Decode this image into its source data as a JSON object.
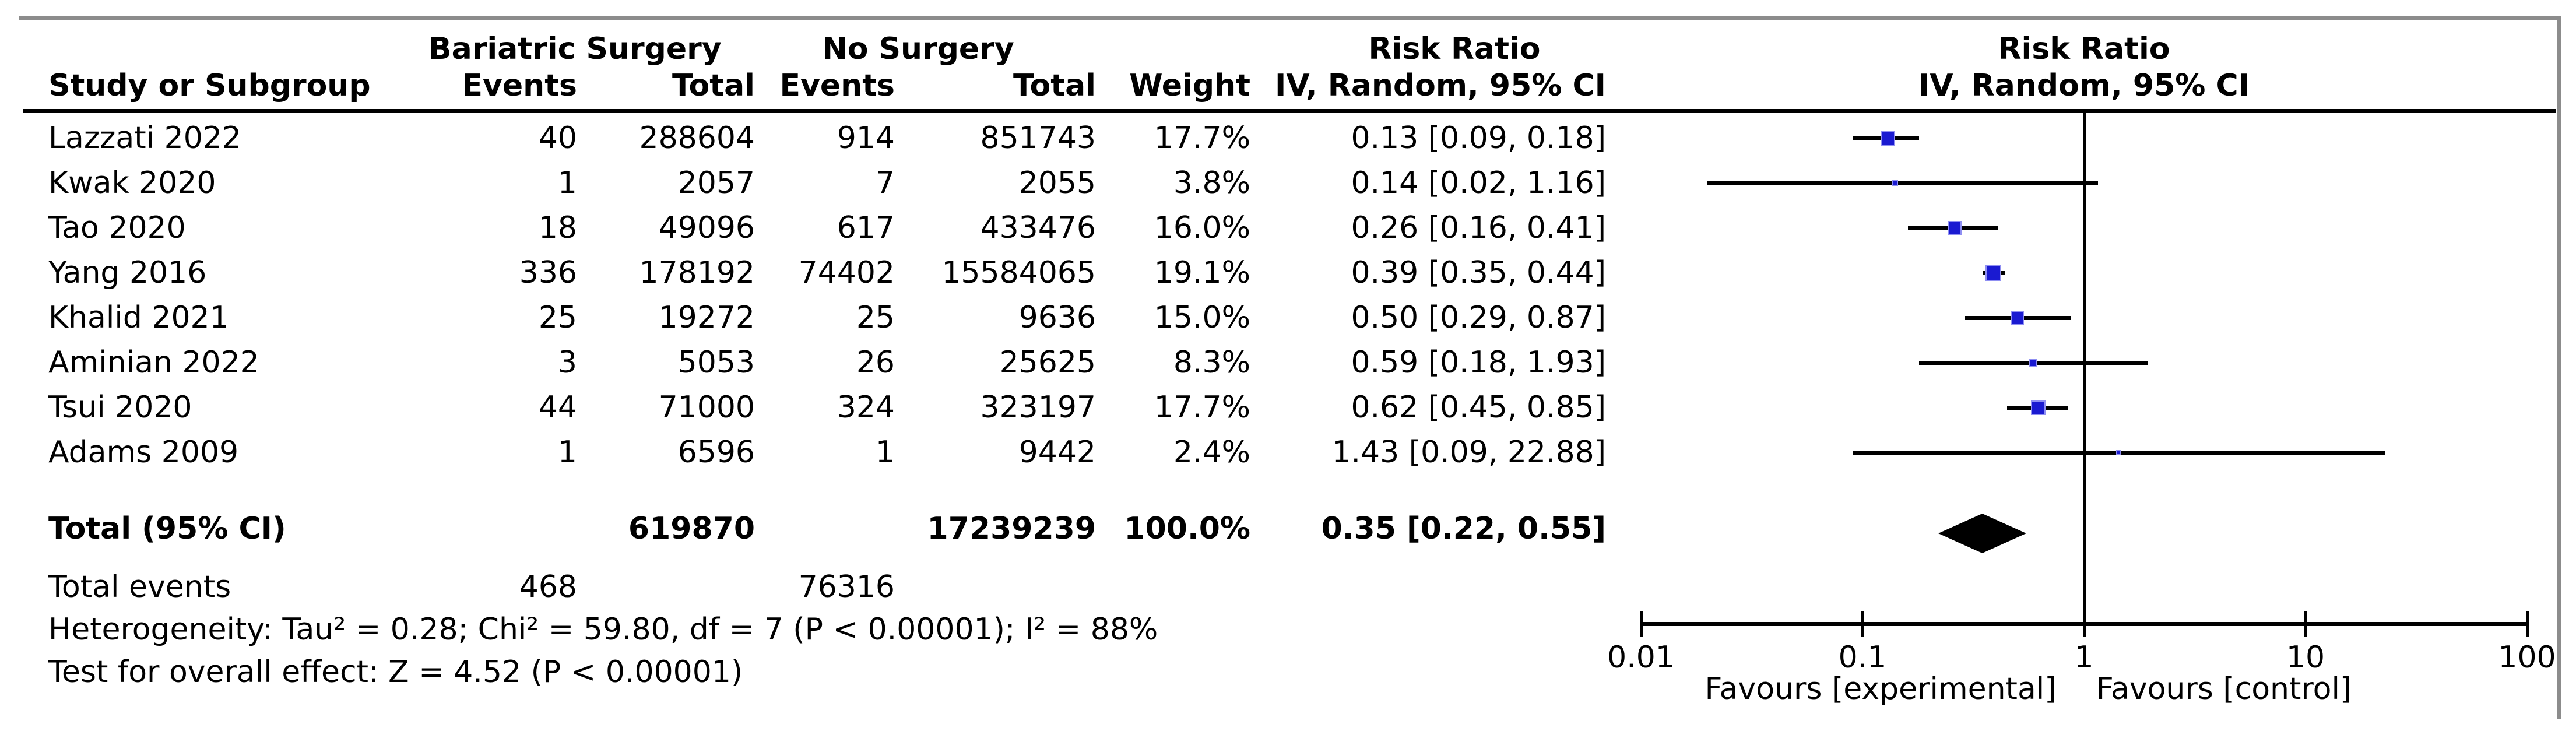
{
  "figure": {
    "columns": {
      "study": "Study or Subgroup",
      "group1": "Bariatric Surgery",
      "group2": "No Surgery",
      "events1": "Events",
      "total1": "Total",
      "events2": "Events",
      "total2": "Total",
      "weight": "Weight",
      "risk_ratio_left": "Risk Ratio",
      "method_ci_left": "IV, Random, 95% CI",
      "risk_ratio_right": "Risk Ratio",
      "method_ci_right": "IV, Random, 95% CI"
    }
  },
  "chart_data": {
    "type": "scatter",
    "variant": "forest-plot",
    "effect_measure": "Risk Ratio",
    "model": "IV, Random, 95% CI",
    "x_scale": "log10",
    "x_ticks": [
      0.01,
      0.1,
      1,
      10,
      100
    ],
    "x_tick_labels": [
      "0.01",
      "0.1",
      "1",
      "10",
      "100"
    ],
    "favours_left": "Favours [experimental]",
    "favours_right": "Favours [control]",
    "marker_color": "#1a1ad1",
    "diamond_color": "#000000",
    "studies": [
      {
        "name": "Lazzati 2022",
        "e1": "40",
        "n1": "288604",
        "e2": "914",
        "n2": "851743",
        "weight_pct": 17.7,
        "weight_label": "17.7%",
        "rr": 0.13,
        "ci_low": 0.09,
        "ci_high": 0.18,
        "rr_label": "0.13 [0.09, 0.18]"
      },
      {
        "name": "Kwak 2020",
        "e1": "1",
        "n1": "2057",
        "e2": "7",
        "n2": "2055",
        "weight_pct": 3.8,
        "weight_label": "3.8%",
        "rr": 0.14,
        "ci_low": 0.02,
        "ci_high": 1.16,
        "rr_label": "0.14 [0.02, 1.16]"
      },
      {
        "name": "Tao 2020",
        "e1": "18",
        "n1": "49096",
        "e2": "617",
        "n2": "433476",
        "weight_pct": 16.0,
        "weight_label": "16.0%",
        "rr": 0.26,
        "ci_low": 0.16,
        "ci_high": 0.41,
        "rr_label": "0.26 [0.16, 0.41]"
      },
      {
        "name": "Yang 2016",
        "e1": "336",
        "n1": "178192",
        "e2": "74402",
        "n2": "15584065",
        "weight_pct": 19.1,
        "weight_label": "19.1%",
        "rr": 0.39,
        "ci_low": 0.35,
        "ci_high": 0.44,
        "rr_label": "0.39 [0.35, 0.44]"
      },
      {
        "name": "Khalid 2021",
        "e1": "25",
        "n1": "19272",
        "e2": "25",
        "n2": "9636",
        "weight_pct": 15.0,
        "weight_label": "15.0%",
        "rr": 0.5,
        "ci_low": 0.29,
        "ci_high": 0.87,
        "rr_label": "0.50 [0.29, 0.87]"
      },
      {
        "name": "Aminian 2022",
        "e1": "3",
        "n1": "5053",
        "e2": "26",
        "n2": "25625",
        "weight_pct": 8.3,
        "weight_label": "8.3%",
        "rr": 0.59,
        "ci_low": 0.18,
        "ci_high": 1.93,
        "rr_label": "0.59 [0.18, 1.93]"
      },
      {
        "name": "Tsui 2020",
        "e1": "44",
        "n1": "71000",
        "e2": "324",
        "n2": "323197",
        "weight_pct": 17.7,
        "weight_label": "17.7%",
        "rr": 0.62,
        "ci_low": 0.45,
        "ci_high": 0.85,
        "rr_label": "0.62 [0.45, 0.85]"
      },
      {
        "name": "Adams 2009",
        "e1": "1",
        "n1": "6596",
        "e2": "1",
        "n2": "9442",
        "weight_pct": 2.4,
        "weight_label": "2.4%",
        "rr": 1.43,
        "ci_low": 0.09,
        "ci_high": 22.88,
        "rr_label": "1.43 [0.09, 22.88]"
      }
    ],
    "total": {
      "label": "Total (95% CI)",
      "n1": "619870",
      "n2": "17239239",
      "weight_label": "100.0%",
      "rr": 0.35,
      "ci_low": 0.22,
      "ci_high": 0.55,
      "rr_label": "0.35 [0.22, 0.55]"
    },
    "total_events": {
      "label": "Total events",
      "e1": "468",
      "e2": "76316"
    },
    "heterogeneity": "Heterogeneity: Tau² = 0.28; Chi² = 59.80, df = 7 (P < 0.00001); I² = 88%",
    "overall_effect": "Test for overall effect: Z = 4.52 (P < 0.00001)"
  }
}
